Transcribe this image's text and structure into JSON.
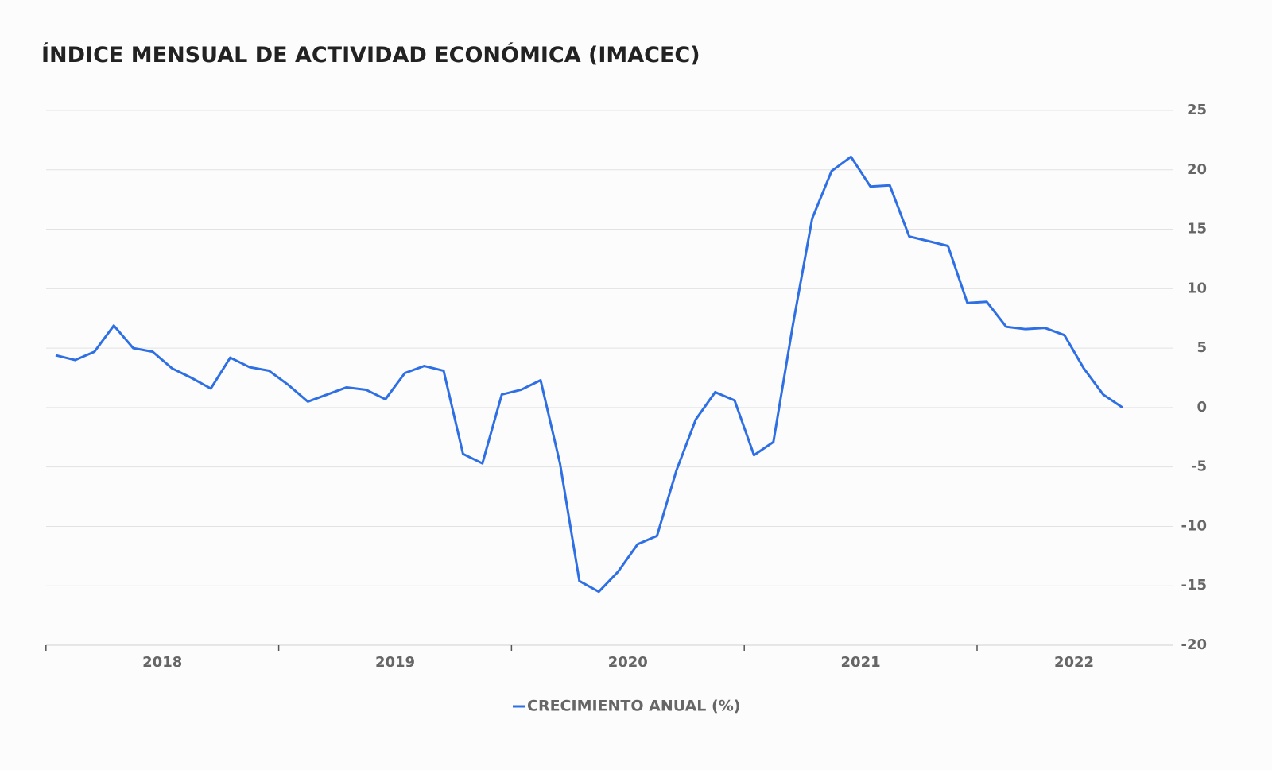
{
  "chart_data": {
    "type": "line",
    "title": "ÍNDICE MENSUAL DE ACTIVIDAD ECONÓMICA (IMACEC)",
    "categories": [
      null,
      null,
      null,
      null,
      null,
      null,
      "2018",
      null,
      null,
      null,
      null,
      null,
      null,
      null,
      null,
      null,
      null,
      null,
      "2019",
      null,
      null,
      null,
      null,
      null,
      null,
      null,
      null,
      null,
      null,
      null,
      "2020",
      null,
      null,
      null,
      null,
      null,
      null,
      null,
      null,
      null,
      null,
      null,
      "2021",
      null,
      null,
      null,
      null,
      null,
      null,
      null,
      null,
      null,
      null,
      "2022",
      null,
      null
    ],
    "series": [
      {
        "name": "CRECIMIENTO ANUAL (%)",
        "color": "#2f6fe4",
        "values": [
          4.4,
          4.0,
          4.7,
          6.9,
          5.0,
          4.7,
          3.3,
          2.5,
          1.6,
          4.2,
          3.4,
          3.1,
          1.9,
          0.5,
          1.1,
          1.7,
          1.5,
          0.7,
          2.9,
          3.5,
          3.1,
          -3.9,
          -4.7,
          1.1,
          1.5,
          2.3,
          -4.7,
          -14.6,
          -15.5,
          -13.8,
          -11.5,
          -10.8,
          -5.3,
          -1.0,
          1.3,
          0.6,
          -4.0,
          -2.9,
          6.9,
          15.9,
          19.9,
          21.1,
          18.6,
          18.7,
          14.4,
          14.0,
          13.6,
          8.8,
          8.9,
          6.8,
          6.6,
          6.7,
          6.1,
          3.3,
          1.1,
          0.0
        ]
      }
    ],
    "ylim": [
      -20,
      25
    ],
    "yticks": [
      -20,
      -15,
      -10,
      -5,
      0,
      5,
      10,
      15,
      20,
      25
    ],
    "grid": true,
    "legend": "bottom"
  }
}
